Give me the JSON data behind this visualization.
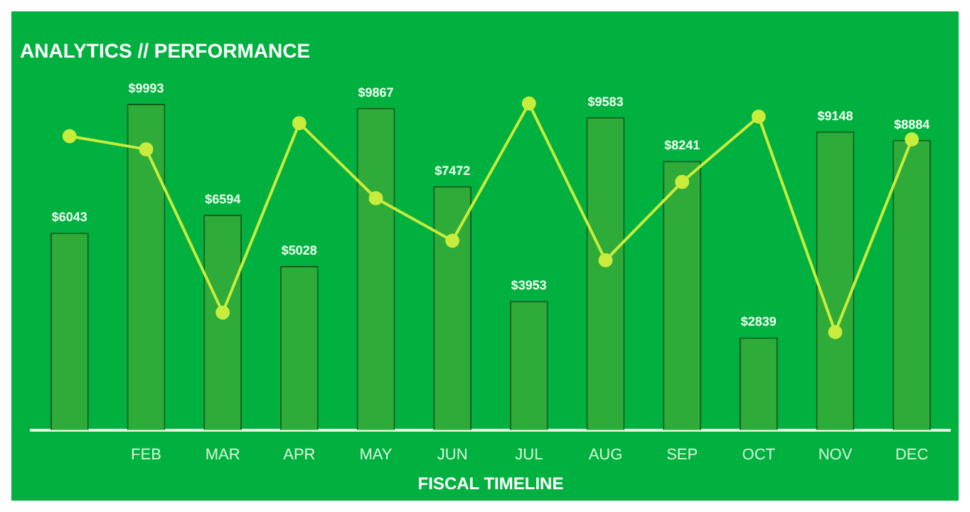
{
  "chart_data": {
    "type": "bar",
    "title": "ANALYTICS // PERFORMANCE",
    "xlabel": "FISCAL TIMELINE",
    "categories": [
      null,
      "FEB",
      "MAR",
      "APR",
      "MAY",
      "JUN",
      "JUL",
      "AUG",
      "SEP",
      "OCT",
      "NOV",
      "DEC"
    ],
    "series": [
      {
        "color": "#2eab38",
        "values": [
          6043,
          9993,
          6594,
          5028,
          9867,
          7472,
          3953,
          9583,
          8241,
          2839,
          9148,
          8884
        ],
        "value_labels": [
          "$6043",
          "$9993",
          "$6594",
          "$5028",
          "$9867",
          "$7472",
          "$3953",
          "$9583",
          "$8241",
          "$2839",
          "$9148",
          "$8884"
        ]
      },
      {
        "type": "line",
        "color": "#c8ec3c",
        "marker": "circle",
        "values": [
          9000,
          8600,
          3600,
          9400,
          7100,
          5800,
          10000,
          5200,
          7600,
          9600,
          3000,
          8900
        ]
      }
    ],
    "tick_labels": "x",
    "grid": false,
    "legend": false
  }
}
